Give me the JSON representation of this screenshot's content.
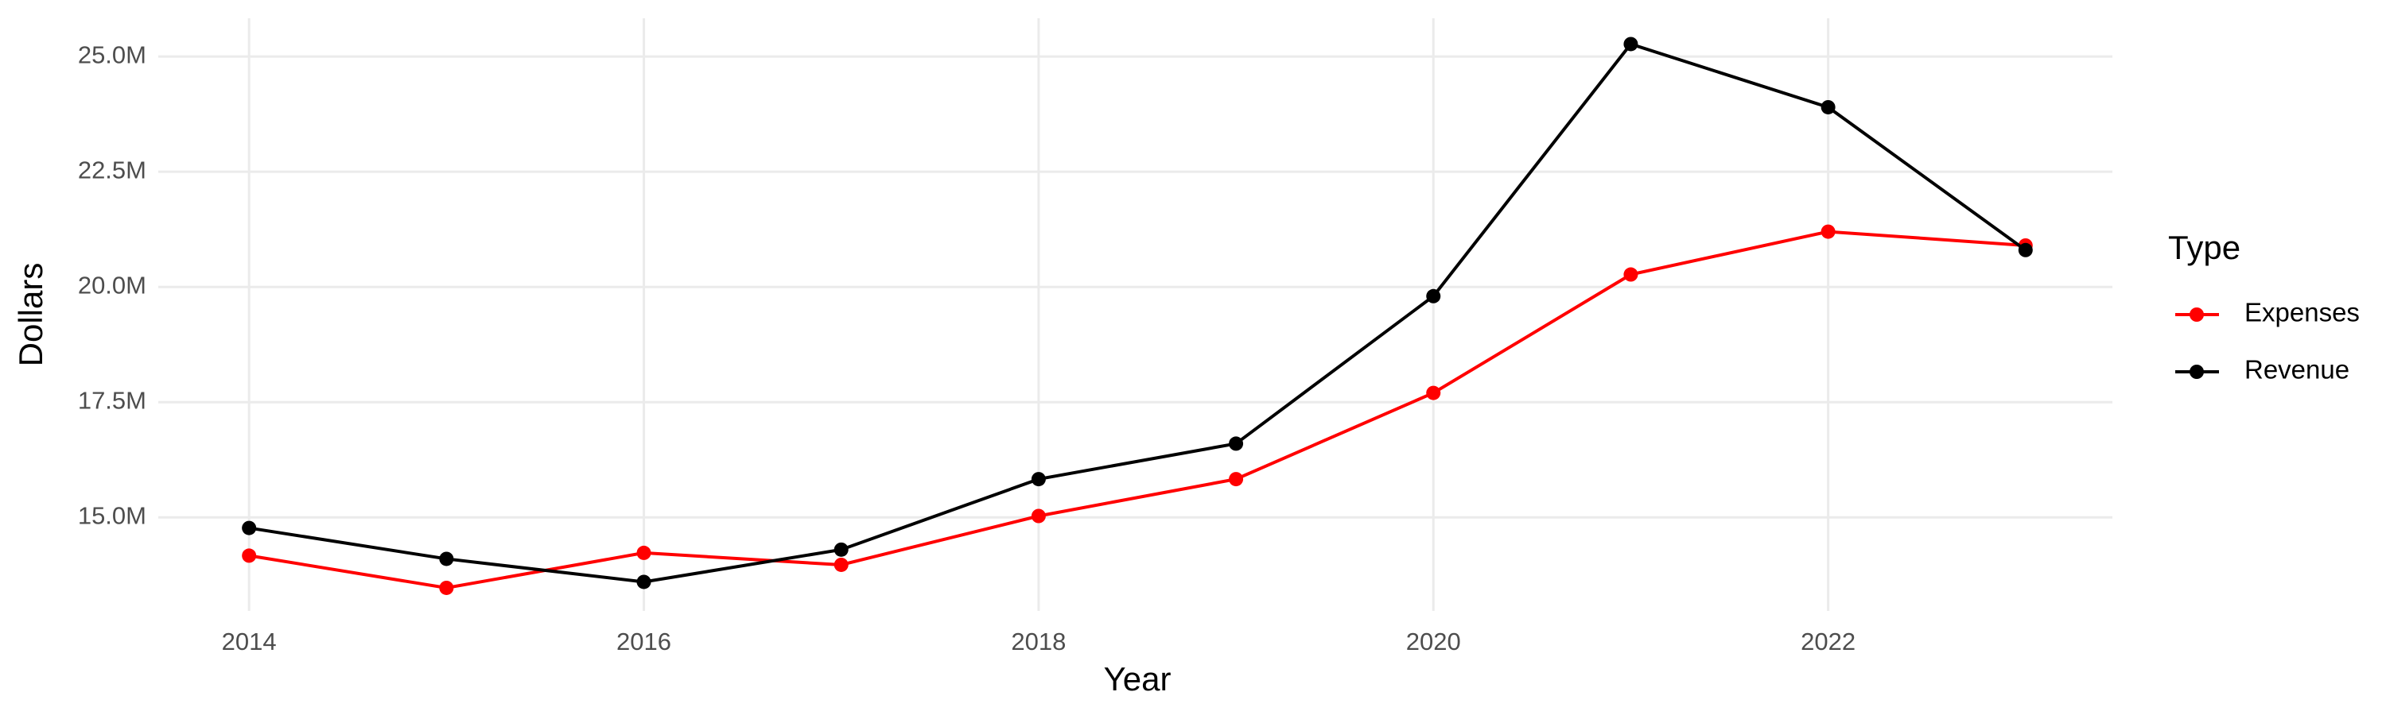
{
  "chart_data": {
    "type": "line",
    "x_label": "Year",
    "y_label": "Dollars",
    "legend_title": "Type",
    "legend_position": "right",
    "grid": true,
    "x": [
      2014,
      2015,
      2016,
      2017,
      2018,
      2019,
      2020,
      2021,
      2022,
      2023
    ],
    "xlim": [
      2013.54,
      2023.44
    ],
    "xticks": [
      2014,
      2016,
      2018,
      2020,
      2022
    ],
    "ylim": [
      12970000,
      25830000
    ],
    "yticks": [
      {
        "value": 15000000,
        "label": "15.0M"
      },
      {
        "value": 17500000,
        "label": "17.5M"
      },
      {
        "value": 20000000,
        "label": "20.0M"
      },
      {
        "value": 22500000,
        "label": "22.5M"
      },
      {
        "value": 25000000,
        "label": "25.0M"
      }
    ],
    "series": [
      {
        "name": "Expenses",
        "color": "#ff0000",
        "values": [
          14170000,
          13470000,
          14230000,
          13970000,
          15030000,
          15830000,
          17700000,
          20270000,
          21200000,
          20900000
        ]
      },
      {
        "name": "Revenue",
        "color": "#000000",
        "values": [
          14770000,
          14100000,
          13600000,
          14300000,
          15830000,
          16600000,
          19800000,
          25270000,
          23900000,
          20800000
        ]
      }
    ]
  }
}
